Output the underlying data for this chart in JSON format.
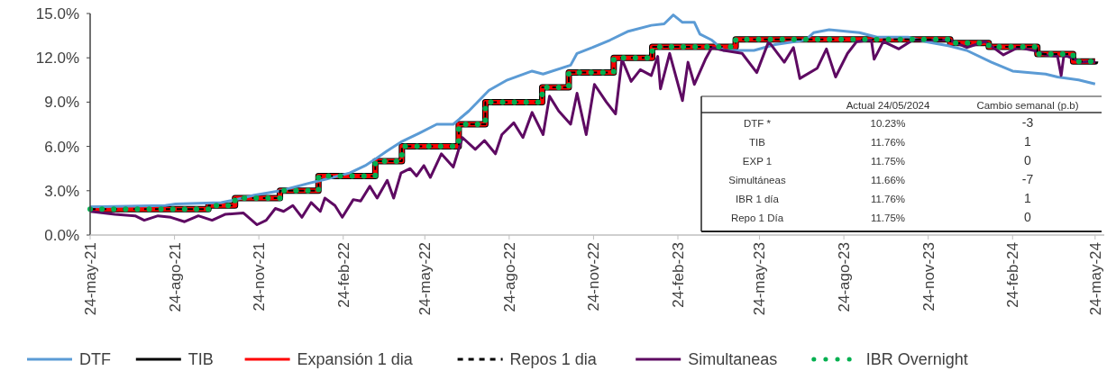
{
  "chart_data": {
    "type": "line",
    "xlim": [
      "2021-05-24",
      "2024-06-03"
    ],
    "ylim": [
      0,
      15
    ],
    "xticks": [
      {
        "value": "2021-05-24",
        "label": "24-may-21"
      },
      {
        "value": "2021-08-24",
        "label": "24-ago-21"
      },
      {
        "value": "2021-11-24",
        "label": "24-nov-21"
      },
      {
        "value": "2022-02-24",
        "label": "24-feb-22"
      },
      {
        "value": "2022-05-24",
        "label": "24-may-22"
      },
      {
        "value": "2022-08-24",
        "label": "24-ago-22"
      },
      {
        "value": "2022-11-24",
        "label": "24-nov-22"
      },
      {
        "value": "2023-02-24",
        "label": "24-feb-23"
      },
      {
        "value": "2023-05-24",
        "label": "24-may-23"
      },
      {
        "value": "2023-08-24",
        "label": "24-ago-23"
      },
      {
        "value": "2023-11-24",
        "label": "24-nov-23"
      },
      {
        "value": "2024-02-24",
        "label": "24-feb-24"
      },
      {
        "value": "2024-05-24",
        "label": "24-may-24"
      }
    ],
    "yticks": [
      {
        "value": 0,
        "label": "0.0%"
      },
      {
        "value": 3,
        "label": "3.0%"
      },
      {
        "value": 6,
        "label": "6.0%"
      },
      {
        "value": 9,
        "label": "9.0%"
      },
      {
        "value": 12,
        "label": "12.0%"
      },
      {
        "value": 15,
        "label": "15.0%"
      }
    ],
    "legend": "bottom",
    "series": [
      {
        "name": "DTF",
        "color": "#5b9bd5",
        "type": "line",
        "line_style": "solid",
        "x": [
          "2021-05-24",
          "2021-08-14",
          "2021-08-25",
          "2021-10-14",
          "2021-10-30",
          "2021-11-19",
          "2021-12-18",
          "2022-01-17",
          "2022-02-06",
          "2022-03-03",
          "2022-03-20",
          "2022-03-30",
          "2022-04-13",
          "2022-04-28",
          "2022-05-18",
          "2022-06-06",
          "2022-06-24",
          "2022-07-11",
          "2022-08-02",
          "2022-08-22",
          "2022-09-18",
          "2022-09-30",
          "2022-10-30",
          "2022-11-06",
          "2022-11-23",
          "2022-12-12",
          "2023-01-01",
          "2023-01-26",
          "2023-02-09",
          "2023-02-19",
          "2023-03-01",
          "2023-03-14",
          "2023-03-20",
          "2023-04-02",
          "2023-04-15",
          "2023-05-18",
          "2023-06-10",
          "2023-07-13",
          "2023-07-22",
          "2023-08-08",
          "2023-09-10",
          "2023-09-29",
          "2023-11-02",
          "2023-11-21",
          "2023-12-17",
          "2024-01-05",
          "2024-02-01",
          "2024-02-24",
          "2024-03-31",
          "2024-04-13",
          "2024-05-06",
          "2024-05-24"
        ],
        "values": [
          1.9,
          2.0,
          2.1,
          2.2,
          2.4,
          2.7,
          3.0,
          3.5,
          3.8,
          4.2,
          4.7,
          5.1,
          5.7,
          6.3,
          6.9,
          7.5,
          7.5,
          8.4,
          9.8,
          10.5,
          11.1,
          10.9,
          11.5,
          12.3,
          12.7,
          13.2,
          13.8,
          14.2,
          14.3,
          14.9,
          14.4,
          14.4,
          13.6,
          13.2,
          12.5,
          12.5,
          12.9,
          13.2,
          13.7,
          13.9,
          13.7,
          13.4,
          13.4,
          13.1,
          12.8,
          12.5,
          11.7,
          11.1,
          10.9,
          10.7,
          10.5,
          10.23
        ]
      },
      {
        "name": "TIB",
        "color": "#000000",
        "type": "step",
        "line_style": "solid",
        "x": [
          "2021-05-24",
          "2021-09-30",
          "2021-10-29",
          "2021-12-17",
          "2022-01-28",
          "2022-03-31",
          "2022-04-29",
          "2022-06-30",
          "2022-07-29",
          "2022-09-29",
          "2022-10-28",
          "2022-12-16",
          "2023-01-27",
          "2023-04-28",
          "2023-12-18",
          "2024-01-29",
          "2024-03-22",
          "2024-04-30",
          "2024-05-24"
        ],
        "values": [
          1.75,
          2.0,
          2.5,
          3.0,
          4.0,
          5.0,
          6.0,
          7.5,
          9.0,
          10.0,
          11.0,
          12.0,
          12.75,
          13.25,
          13.0,
          12.75,
          12.25,
          11.75,
          11.76
        ]
      },
      {
        "name": "Expansión 1 dia",
        "color": "#ff0000",
        "type": "step",
        "line_style": "solid",
        "x": [
          "2021-05-24",
          "2021-09-30",
          "2021-10-29",
          "2021-12-17",
          "2022-01-28",
          "2022-03-31",
          "2022-04-29",
          "2022-06-30",
          "2022-07-29",
          "2022-09-29",
          "2022-10-28",
          "2022-12-16",
          "2023-01-27",
          "2023-04-28",
          "2023-12-18",
          "2024-01-29",
          "2024-03-22",
          "2024-04-30",
          "2024-05-24"
        ],
        "values": [
          1.75,
          2.0,
          2.5,
          3.0,
          4.0,
          5.0,
          6.0,
          7.5,
          9.0,
          10.0,
          11.0,
          12.0,
          12.75,
          13.25,
          13.0,
          12.75,
          12.25,
          11.75,
          11.75
        ]
      },
      {
        "name": "Repos 1 dia",
        "color": "#000000",
        "type": "step",
        "line_style": "dashed",
        "x": [
          "2021-05-24",
          "2021-09-30",
          "2021-10-29",
          "2021-12-17",
          "2022-01-28",
          "2022-03-31",
          "2022-04-29",
          "2022-06-30",
          "2022-07-29",
          "2022-09-29",
          "2022-10-28",
          "2022-12-16",
          "2023-01-27",
          "2023-04-28",
          "2023-12-18",
          "2024-01-29",
          "2024-03-22",
          "2024-04-30",
          "2024-05-24"
        ],
        "values": [
          1.75,
          2.0,
          2.5,
          3.0,
          4.0,
          5.0,
          6.0,
          7.5,
          9.0,
          10.0,
          11.0,
          12.0,
          12.75,
          13.25,
          13.0,
          12.75,
          12.25,
          11.75,
          11.75
        ]
      },
      {
        "name": "Simultaneas",
        "color": "#5e0a62",
        "type": "line",
        "line_style": "solid",
        "x": [
          "2021-05-24",
          "2021-06-20",
          "2021-07-12",
          "2021-07-22",
          "2021-08-06",
          "2021-08-20",
          "2021-09-04",
          "2021-09-19",
          "2021-10-04",
          "2021-10-18",
          "2021-11-07",
          "2021-11-22",
          "2021-12-02",
          "2021-12-12",
          "2021-12-21",
          "2021-12-31",
          "2022-01-10",
          "2022-01-20",
          "2022-01-30",
          "2022-02-04",
          "2022-02-15",
          "2022-02-23",
          "2022-03-07",
          "2022-03-15",
          "2022-03-25",
          "2022-04-02",
          "2022-04-13",
          "2022-04-20",
          "2022-04-28",
          "2022-05-08",
          "2022-05-15",
          "2022-05-23",
          "2022-05-30",
          "2022-06-11",
          "2022-06-24",
          "2022-07-04",
          "2022-07-18",
          "2022-07-28",
          "2022-08-09",
          "2022-08-16",
          "2022-08-29",
          "2022-09-08",
          "2022-09-18",
          "2022-09-30",
          "2022-10-07",
          "2022-10-17",
          "2022-10-30",
          "2022-11-06",
          "2022-11-16",
          "2022-11-25",
          "2022-12-08",
          "2022-12-18",
          "2022-12-25",
          "2023-01-04",
          "2023-01-14",
          "2023-01-26",
          "2023-02-02",
          "2023-02-05",
          "2023-02-15",
          "2023-03-01",
          "2023-03-07",
          "2023-03-14",
          "2023-03-26",
          "2023-04-02",
          "2023-04-15",
          "2023-05-05",
          "2023-05-21",
          "2023-06-03",
          "2023-06-20",
          "2023-06-30",
          "2023-07-07",
          "2023-07-26",
          "2023-08-05",
          "2023-08-15",
          "2023-08-28",
          "2023-09-07",
          "2023-09-23",
          "2023-09-26",
          "2023-10-06",
          "2023-10-23",
          "2023-11-07",
          "2023-11-27",
          "2023-12-17",
          "2024-01-05",
          "2024-01-25",
          "2024-02-14",
          "2024-03-01",
          "2024-03-18",
          "2024-03-31",
          "2024-04-13",
          "2024-04-17",
          "2024-04-20",
          "2024-05-09",
          "2024-05-22",
          "2024-05-24"
        ],
        "values": [
          1.6,
          1.4,
          1.3,
          1.0,
          1.3,
          1.2,
          0.9,
          1.3,
          1.0,
          1.4,
          1.5,
          0.7,
          1.0,
          1.8,
          1.6,
          2.0,
          1.2,
          2.2,
          1.6,
          2.5,
          2.0,
          1.2,
          2.4,
          2.3,
          3.3,
          2.5,
          3.7,
          2.5,
          4.2,
          4.5,
          4.0,
          4.7,
          3.9,
          5.5,
          4.6,
          6.6,
          5.8,
          6.4,
          5.5,
          6.8,
          7.6,
          6.6,
          8.3,
          6.8,
          9.4,
          8.4,
          7.5,
          9.6,
          6.8,
          10.2,
          9.0,
          8.2,
          11.9,
          10.4,
          11.2,
          10.8,
          12.1,
          9.9,
          12.3,
          9.1,
          11.7,
          10.2,
          11.9,
          12.7,
          12.5,
          12.3,
          11.0,
          13.1,
          11.7,
          12.7,
          10.6,
          11.3,
          12.6,
          10.7,
          12.3,
          13.1,
          13.2,
          11.9,
          13.1,
          12.6,
          13.2,
          13.2,
          13.2,
          12.7,
          13.1,
          12.2,
          12.7,
          12.5,
          12.2,
          12.1,
          10.8,
          12.2,
          11.7,
          11.8,
          11.66
        ]
      },
      {
        "name": "IBR Overnight",
        "color": "#00b050",
        "type": "step",
        "line_style": "dotted",
        "x": [
          "2021-05-24",
          "2021-09-30",
          "2021-10-29",
          "2021-12-17",
          "2022-01-28",
          "2022-03-31",
          "2022-04-29",
          "2022-06-30",
          "2022-07-29",
          "2022-09-29",
          "2022-10-28",
          "2022-12-16",
          "2023-01-27",
          "2023-04-28",
          "2023-12-18",
          "2024-01-29",
          "2024-03-22",
          "2024-04-30",
          "2024-05-24"
        ],
        "values": [
          1.75,
          2.0,
          2.5,
          3.0,
          4.0,
          5.0,
          6.0,
          7.5,
          9.0,
          10.0,
          11.0,
          12.0,
          12.75,
          13.25,
          13.0,
          12.75,
          12.25,
          11.75,
          11.76
        ]
      }
    ],
    "annotations": [
      "Actual 24/05/2024",
      "Cambio semanal (p.b)",
      "DTF *",
      "10.23%",
      "-3",
      "TIB",
      "11.76%",
      "1",
      "EXP 1",
      "11.75%",
      "0",
      "Simultáneas",
      "11.66%",
      "-7",
      "IBR 1 día",
      "11.76%",
      "1",
      "Repo 1 Día",
      "11.75%",
      "0"
    ]
  }
}
